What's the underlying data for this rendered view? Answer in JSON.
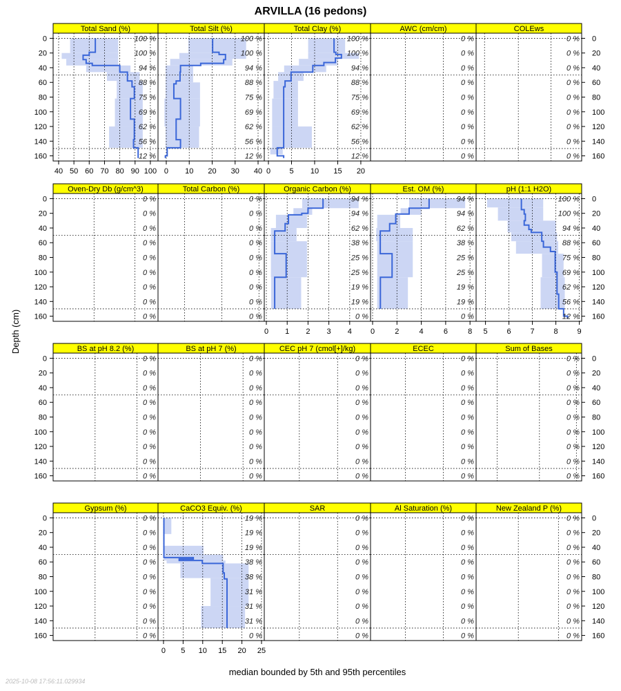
{
  "chart_data": {
    "type": "step-profile-lattice",
    "title": "ARVILLA (16 pedons)",
    "ylabel": "Depth (cm)",
    "xlabel": "median bounded by 5th and 95th percentiles",
    "footer": "2025-10-08 17:56:11.029934",
    "ylim": [
      -7,
      167
    ],
    "depth_ticks": [
      "0",
      "20",
      "40",
      "60",
      "80",
      "100",
      "120",
      "140",
      "160"
    ],
    "depth_tick_values": [
      0,
      20,
      40,
      60,
      80,
      100,
      120,
      140,
      160
    ],
    "hlines": [
      50,
      150
    ],
    "colors": {
      "strip": "#ffff00",
      "median": "#3a66d8",
      "band": "#ccd6f4"
    },
    "panels": [
      {
        "label": "Total Sand (%)",
        "xlim": [
          36.4,
          105
        ],
        "ticks": [
          40,
          50,
          60,
          70,
          80,
          90,
          100
        ],
        "show_ticks": true,
        "pct": [
          "100 %",
          "100 %",
          "94 %",
          "88 %",
          "75 %",
          "69 %",
          "62 %",
          "56 %",
          "12 %"
        ],
        "median": [
          [
            0,
            19,
            64
          ],
          [
            19,
            23,
            60
          ],
          [
            23,
            29,
            56
          ],
          [
            29,
            34,
            58
          ],
          [
            34,
            37,
            62
          ],
          [
            37,
            46,
            80
          ],
          [
            46,
            58,
            85
          ],
          [
            58,
            66,
            88
          ],
          [
            66,
            82,
            89.5
          ],
          [
            82,
            110,
            87
          ],
          [
            110,
            138,
            89.5
          ],
          [
            138,
            149,
            89
          ],
          [
            149,
            163,
            92
          ]
        ],
        "band": [
          [
            0,
            20,
            47.5,
            79
          ],
          [
            20,
            28,
            42,
            79
          ],
          [
            28,
            37,
            45,
            79
          ],
          [
            37,
            46,
            58,
            87
          ],
          [
            46,
            58,
            71.6,
            93
          ],
          [
            58,
            82,
            78,
            95
          ],
          [
            82,
            120,
            76.8,
            95
          ],
          [
            120,
            149,
            73,
            95
          ]
        ]
      },
      {
        "label": "Total Silt (%)",
        "xlim": [
          -3.6,
          42.7
        ],
        "ticks": [
          0,
          10,
          20,
          30,
          40
        ],
        "show_ticks": true,
        "pct": [
          "100 %",
          "100 %",
          "94 %",
          "88 %",
          "75 %",
          "69 %",
          "62 %",
          "56 %",
          "12 %"
        ],
        "median": [
          [
            0,
            19,
            20.2
          ],
          [
            19,
            22,
            23
          ],
          [
            22,
            29,
            25.8
          ],
          [
            29,
            34,
            25
          ],
          [
            34,
            37,
            15
          ],
          [
            37,
            46,
            6.2
          ],
          [
            46,
            58,
            6
          ],
          [
            58,
            62,
            4.3
          ],
          [
            62,
            82,
            3.3
          ],
          [
            82,
            110,
            6.2
          ],
          [
            110,
            138,
            4.3
          ],
          [
            138,
            149,
            6.2
          ],
          [
            149,
            160,
            0.4
          ],
          [
            160,
            163,
            -0.4
          ]
        ],
        "band": [
          [
            0,
            20,
            9.6,
            34.8
          ],
          [
            20,
            28,
            5.7,
            34.8
          ],
          [
            28,
            37,
            1.7,
            28.8
          ],
          [
            37,
            60,
            -0.3,
            11.7
          ],
          [
            60,
            82,
            -0.3,
            14.7
          ],
          [
            82,
            120,
            -0.8,
            14.7
          ],
          [
            120,
            149,
            -0.3,
            14.3
          ]
        ]
      },
      {
        "label": "Total Clay (%)",
        "xlim": [
          -0.9,
          22.1
        ],
        "ticks": [
          0,
          5,
          10,
          15,
          20
        ],
        "show_ticks": true,
        "pct": [
          "100 %",
          "100 %",
          "94 %",
          "88 %",
          "75 %",
          "69 %",
          "62 %",
          "56 %",
          "12 %"
        ],
        "median": [
          [
            0,
            19,
            14.2
          ],
          [
            19,
            22,
            14.6
          ],
          [
            22,
            27,
            15.8
          ],
          [
            27,
            33,
            14.5
          ],
          [
            33,
            37,
            12
          ],
          [
            37,
            46,
            9.6
          ],
          [
            46,
            58,
            4.9
          ],
          [
            58,
            66,
            3.6
          ],
          [
            66,
            149,
            3.3
          ],
          [
            149,
            160,
            1.9
          ],
          [
            160,
            163,
            3.3
          ]
        ],
        "band": [
          [
            0,
            20,
            8.6,
            16.6
          ],
          [
            20,
            28,
            8.6,
            19.6
          ],
          [
            28,
            37,
            6.6,
            15
          ],
          [
            37,
            46,
            3.4,
            12.5
          ],
          [
            46,
            58,
            2.1,
            7.6
          ],
          [
            58,
            82,
            1.1,
            6.4
          ],
          [
            82,
            120,
            0.8,
            6.4
          ],
          [
            120,
            149,
            0.8,
            9.4
          ],
          [
            149,
            158,
            0.4,
            3.1
          ]
        ]
      },
      {
        "label": "AWC (cm/cm)",
        "xlim": [
          0,
          1
        ],
        "grid": [
          0.33,
          0.69
        ],
        "show_ticks": false,
        "pct": [
          "0 %",
          "0 %",
          "0 %",
          "0 %",
          "0 %",
          "0 %",
          "0 %",
          "0 %",
          "0 %"
        ],
        "median": [],
        "band": []
      },
      {
        "label": "COLEws",
        "xlim": [
          0,
          1
        ],
        "grid": [
          0.08,
          0.4,
          0.71
        ],
        "show_ticks": false,
        "pct": [
          "0 %",
          "0 %",
          "0 %",
          "0 %",
          "0 %",
          "0 %",
          "0 %",
          "0 %",
          "0 %"
        ],
        "median": [],
        "band": []
      },
      {
        "label": "Oven-Dry Db (g/cm^3)",
        "xlim": [
          0,
          1
        ],
        "grid": [
          0.39,
          0.78
        ],
        "show_ticks": false,
        "pct": [
          "0 %",
          "0 %",
          "0 %",
          "0 %",
          "0 %",
          "0 %",
          "0 %",
          "0 %",
          "0 %"
        ],
        "median": [],
        "band": []
      },
      {
        "label": "Total Carbon (%)",
        "xlim": [
          0,
          1
        ],
        "grid": [
          0.25,
          0.6,
          0.95
        ],
        "show_ticks": false,
        "pct": [
          "0 %",
          "0 %",
          "0 %",
          "0 %",
          "0 %",
          "0 %",
          "0 %",
          "0 %",
          "0 %"
        ],
        "median": [],
        "band": []
      },
      {
        "label": "Organic Carbon (%)",
        "xlim": [
          -0.1,
          5.0
        ],
        "ticks": [
          0,
          1,
          2,
          3,
          4
        ],
        "show_ticks": true,
        "pct": [
          "94 %",
          "94 %",
          "62 %",
          "38 %",
          "25 %",
          "25 %",
          "19 %",
          "19 %",
          "0 %"
        ],
        "median": [
          [
            0,
            13,
            2.72
          ],
          [
            13,
            20,
            2.0
          ],
          [
            20,
            22,
            1.7
          ],
          [
            22,
            34,
            1.06
          ],
          [
            34,
            44,
            0.9
          ],
          [
            44,
            75,
            0.4
          ],
          [
            75,
            107,
            0.95
          ],
          [
            107,
            150,
            0.4
          ]
        ],
        "band": [
          [
            0,
            13,
            1.72,
            4.43
          ],
          [
            13,
            22,
            1.3,
            2.2
          ],
          [
            22,
            40,
            0.46,
            1.95
          ],
          [
            40,
            58,
            0.22,
            1.45
          ],
          [
            58,
            107,
            0.22,
            1.95
          ],
          [
            107,
            150,
            0.23,
            1.67
          ]
        ]
      },
      {
        "label": "Est. OM (%)",
        "xlim": [
          -0.17,
          8.5
        ],
        "ticks": [
          0,
          2,
          4,
          6,
          8
        ],
        "show_ticks": true,
        "pct": [
          "94 %",
          "94 %",
          "62 %",
          "38 %",
          "25 %",
          "25 %",
          "19 %",
          "19 %",
          "0 %"
        ],
        "median": [
          [
            0,
            13,
            4.64
          ],
          [
            13,
            21,
            3.0
          ],
          [
            21,
            34,
            1.9
          ],
          [
            34,
            44,
            1.4
          ],
          [
            44,
            75,
            0.63
          ],
          [
            75,
            107,
            1.6
          ],
          [
            107,
            150,
            0.64
          ]
        ],
        "band": [
          [
            0,
            13,
            3.0,
            7.6
          ],
          [
            13,
            22,
            2.3,
            4.0
          ],
          [
            22,
            40,
            0.38,
            2.27
          ],
          [
            40,
            58,
            0.3,
            3.3
          ],
          [
            58,
            107,
            0.38,
            3.3
          ],
          [
            107,
            150,
            0.38,
            2.9
          ]
        ]
      },
      {
        "label": "pH (1:1 H2O)",
        "xlim": [
          4.6,
          9.1
        ],
        "ticks": [
          5,
          6,
          7,
          8,
          9
        ],
        "show_ticks": true,
        "pct": [
          "100 %",
          "100 %",
          "94 %",
          "88 %",
          "75 %",
          "69 %",
          "62 %",
          "56 %",
          "12 %"
        ],
        "median": [
          [
            0,
            15,
            6.53
          ],
          [
            15,
            21,
            6.65
          ],
          [
            21,
            30,
            6.7
          ],
          [
            30,
            36,
            6.65
          ],
          [
            36,
            42,
            6.85
          ],
          [
            42,
            46,
            6.95
          ],
          [
            46,
            58,
            7.4
          ],
          [
            58,
            66,
            7.47
          ],
          [
            66,
            72,
            7.77
          ],
          [
            72,
            100,
            7.97
          ],
          [
            100,
            130,
            8.05
          ],
          [
            130,
            150,
            8.12
          ],
          [
            150,
            160,
            8.33
          ],
          [
            160,
            163,
            8.5
          ]
        ],
        "band": [
          [
            0,
            12,
            5.07,
            7.46
          ],
          [
            12,
            30,
            5.53,
            7.46
          ],
          [
            30,
            46,
            5.94,
            8.0
          ],
          [
            46,
            58,
            6.1,
            8.05
          ],
          [
            58,
            75,
            6.3,
            8.1
          ],
          [
            75,
            107,
            7.41,
            8.33
          ],
          [
            107,
            150,
            7.35,
            8.38
          ]
        ]
      },
      {
        "label": "BS at pH 8.2 (%)",
        "xlim": [
          0,
          1
        ],
        "grid": [
          0.4,
          0.8
        ],
        "show_ticks": false,
        "pct": [
          "0 %",
          "0 %",
          "0 %",
          "0 %",
          "0 %",
          "0 %",
          "0 %",
          "0 %",
          "0 %"
        ],
        "median": [],
        "band": []
      },
      {
        "label": "BS at pH 7 (%)",
        "xlim": [
          0,
          1
        ],
        "grid": [
          0.4,
          0.8
        ],
        "show_ticks": false,
        "pct": [
          "0 %",
          "0 %",
          "0 %",
          "0 %",
          "0 %",
          "0 %",
          "0 %",
          "0 %",
          "0 %"
        ],
        "median": [],
        "band": []
      },
      {
        "label": "CEC pH 7 (cmol[+]/kg)",
        "xlim": [
          0,
          1
        ],
        "grid": [
          0.33,
          0.69
        ],
        "show_ticks": false,
        "pct": [
          "0 %",
          "0 %",
          "0 %",
          "0 %",
          "0 %",
          "0 %",
          "0 %",
          "0 %",
          "0 %"
        ],
        "median": [],
        "band": []
      },
      {
        "label": "ECEC",
        "xlim": [
          0,
          1
        ],
        "grid": [
          0.33,
          0.69
        ],
        "show_ticks": false,
        "pct": [
          "0 %",
          "0 %",
          "0 %",
          "0 %",
          "0 %",
          "0 %",
          "0 %",
          "0 %",
          "0 %"
        ],
        "median": [],
        "band": []
      },
      {
        "label": "Sum of Bases",
        "xlim": [
          0,
          1
        ],
        "grid": [
          0.2,
          0.6,
          0.95
        ],
        "show_ticks": false,
        "pct": [
          "0 %",
          "0 %",
          "0 %",
          "0 %",
          "0 %",
          "0 %",
          "0 %",
          "0 %",
          "0 %"
        ],
        "median": [],
        "band": []
      },
      {
        "label": "Gypsum (%)",
        "xlim": [
          0,
          1
        ],
        "grid": [
          0.4,
          0.8
        ],
        "show_ticks": false,
        "pct": [
          "0 %",
          "0 %",
          "0 %",
          "0 %",
          "0 %",
          "0 %",
          "0 %",
          "0 %",
          "0 %"
        ],
        "median": [],
        "band": []
      },
      {
        "label": "CaCO3 Equiv. (%)",
        "xlim": [
          -1.4,
          25.7
        ],
        "ticks": [
          0,
          5,
          10,
          15,
          20,
          25
        ],
        "show_ticks": true,
        "pct": [
          "19 %",
          "19 %",
          "19 %",
          "38 %",
          "38 %",
          "31 %",
          "31 %",
          "31 %",
          "0 %"
        ],
        "median": [
          [
            0,
            54,
            0.1
          ],
          [
            54,
            56,
            7.6
          ],
          [
            56,
            58,
            4.0
          ],
          [
            58,
            62,
            9.9
          ],
          [
            62,
            75,
            15.2
          ],
          [
            75,
            83,
            15.5
          ],
          [
            83,
            150,
            16.2
          ]
        ],
        "band": [
          [
            0,
            22,
            0.1,
            2.0
          ],
          [
            38,
            50,
            0.1,
            10.2
          ],
          [
            50,
            58,
            0.1,
            15.2
          ],
          [
            58,
            62,
            0.8,
            15.8
          ],
          [
            62,
            82,
            4.3,
            21.7
          ],
          [
            82,
            120,
            12,
            21.7
          ],
          [
            120,
            150,
            9.6,
            20.8
          ]
        ]
      },
      {
        "label": "SAR",
        "xlim": [
          0,
          1
        ],
        "grid": [
          0.33,
          0.69
        ],
        "show_ticks": false,
        "pct": [
          "0 %",
          "0 %",
          "0 %",
          "0 %",
          "0 %",
          "0 %",
          "0 %",
          "0 %",
          "0 %"
        ],
        "median": [],
        "band": []
      },
      {
        "label": "Al Saturation (%)",
        "xlim": [
          0,
          1
        ],
        "grid": [
          0.33,
          0.69
        ],
        "show_ticks": false,
        "pct": [
          "0 %",
          "0 %",
          "0 %",
          "0 %",
          "0 %",
          "0 %",
          "0 %",
          "0 %",
          "0 %"
        ],
        "median": [],
        "band": []
      },
      {
        "label": "New Zealand P (%)",
        "xlim": [
          0,
          1
        ],
        "grid": [
          0.4,
          0.78
        ],
        "show_ticks": false,
        "pct": [
          "0 %",
          "0 %",
          "0 %",
          "0 %",
          "0 %",
          "0 %",
          "0 %",
          "0 %",
          "0 %"
        ],
        "median": [],
        "band": []
      }
    ]
  }
}
